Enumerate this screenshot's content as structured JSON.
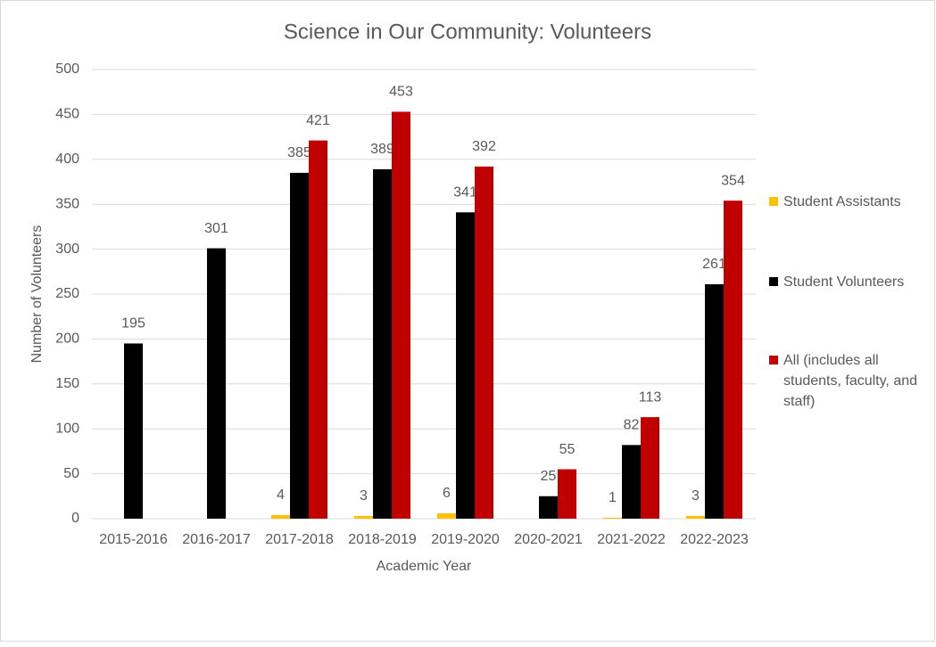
{
  "chart_data": {
    "type": "bar",
    "title": "Science in Our Community: Volunteers",
    "x_label": "Academic Year",
    "y_label": "Number of Volunteers",
    "categories": [
      "2015-2016",
      "2016-2017",
      "2017-2018",
      "2018-2019",
      "2019-2020",
      "2020-2021",
      "2021-2022",
      "2022-2023"
    ],
    "series": [
      {
        "name": "Student Assistants",
        "color": "#ffc000",
        "values": [
          null,
          null,
          4,
          3,
          6,
          null,
          1,
          3
        ]
      },
      {
        "name": "Student Volunteers",
        "color": "#000000",
        "values": [
          195,
          301,
          385,
          389,
          341,
          25,
          82,
          261
        ]
      },
      {
        "name": "All (includes all students, faculty, and staff)",
        "color": "#c00000",
        "values": [
          null,
          null,
          421,
          453,
          392,
          55,
          113,
          354
        ]
      }
    ],
    "ylim": [
      0,
      500
    ],
    "yticks": [
      0,
      50,
      100,
      150,
      200,
      250,
      300,
      350,
      400,
      450,
      500
    ],
    "grid": true,
    "legend": "right"
  }
}
